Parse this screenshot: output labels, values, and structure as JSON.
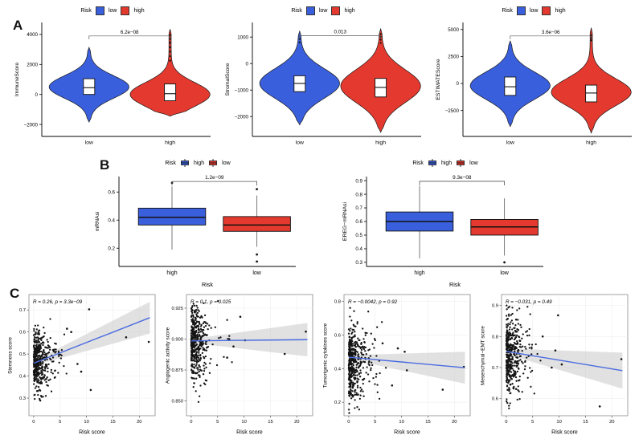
{
  "figure": {
    "background": "#ffffff",
    "colors": {
      "blue": "#3A5FDC",
      "red": "#E4392E",
      "line_blue": "#4A6BE0",
      "band_grey": "#c9c9c9"
    }
  },
  "chart_data": {
    "panels": [
      {
        "id": "A",
        "legend": {
          "title": "Risk",
          "glyph": "square",
          "items": [
            {
              "label": "low",
              "color": "#3A5FDC"
            },
            {
              "label": "high",
              "color": "#E4392E"
            }
          ]
        },
        "plots": [
          {
            "type": "violin",
            "ylabel": "ImmuneScore",
            "yticks": [
              -2000,
              0,
              2000,
              4000
            ],
            "ylim": [
              -2800,
              4800
            ],
            "pvalue": "6.2e−08",
            "bracket_y": 3900,
            "categories": [
              "low",
              "high"
            ],
            "groups": [
              {
                "label": "low",
                "color": "#3A5FDC",
                "median": 450,
                "q1": 0,
                "q3": 1050,
                "lo": -1850,
                "hi": 3150,
                "mu": 500,
                "sigma": 750,
                "dots": []
              },
              {
                "label": "high",
                "color": "#E4392E",
                "median": 50,
                "q1": -420,
                "q3": 700,
                "lo": -1450,
                "hi": 4350,
                "mu": 0,
                "sigma": 800,
                "dots": [
                  2250,
                  2550,
                  2850,
                  3150,
                  3450,
                  3700,
                  3950
                ]
              }
            ]
          },
          {
            "type": "violin",
            "ylabel": "StromalScore",
            "yticks": [
              -2000,
              -1000,
              0,
              1000
            ],
            "ylim": [
              -2750,
              1550
            ],
            "pvalue": "0.013",
            "bracket_y": 1050,
            "categories": [
              "low",
              "high"
            ],
            "groups": [
              {
                "label": "low",
                "color": "#3A5FDC",
                "median": -750,
                "q1": -1060,
                "q3": -460,
                "lo": -2320,
                "hi": 1230,
                "mu": -750,
                "sigma": 560,
                "dots": [
                  800,
                  930
                ]
              },
              {
                "label": "high",
                "color": "#E4392E",
                "median": -900,
                "q1": -1260,
                "q3": -560,
                "lo": -2600,
                "hi": 1320,
                "mu": -850,
                "sigma": 620,
                "dots": [
                  780,
                  900,
                  1010,
                  1110
                ]
              }
            ]
          },
          {
            "type": "violin",
            "ylabel": "ESTIMATEScore",
            "yticks": [
              -2500,
              0,
              2500,
              5000
            ],
            "ylim": [
              -4900,
              5650
            ],
            "pvalue": "3.6e−06",
            "bracket_y": 4400,
            "categories": [
              "low",
              "high"
            ],
            "groups": [
              {
                "label": "low",
                "color": "#3A5FDC",
                "median": -300,
                "q1": -1100,
                "q3": 600,
                "lo": -4000,
                "hi": 3950,
                "mu": -200,
                "sigma": 1250,
                "dots": []
              },
              {
                "label": "high",
                "color": "#E4392E",
                "median": -880,
                "q1": -1700,
                "q3": -150,
                "lo": -4600,
                "hi": 5150,
                "mu": -800,
                "sigma": 1250,
                "dots": [
                  4000,
                  4200,
                  4450
                ]
              }
            ]
          }
        ]
      },
      {
        "id": "B",
        "legend": {
          "title": "Risk",
          "glyph": "box",
          "items": [
            {
              "label": "high",
              "color": "#3A5FDC"
            },
            {
              "label": "low",
              "color": "#E4392E"
            }
          ]
        },
        "plots": [
          {
            "type": "box",
            "ylabel": "mRNAsi",
            "xlabel": "Risk",
            "yticks": [
              0.2,
              0.4,
              0.6
            ],
            "ytick_fmt": 1,
            "ylim": [
              0.07,
              0.71
            ],
            "pvalue": "1.2e−09",
            "bracket_y": 0.675,
            "groups": [
              {
                "label": "high",
                "color": "#3A5FDC",
                "q1": 0.365,
                "q3": 0.485,
                "median": 0.42,
                "lo": 0.19,
                "hi": 0.64,
                "dots": [
                  0.665
                ]
              },
              {
                "label": "low",
                "color": "#E4392E",
                "q1": 0.32,
                "q3": 0.425,
                "median": 0.365,
                "lo": 0.21,
                "hi": 0.575,
                "dots": [
                  0.62,
                  0.155,
                  0.105
                ]
              }
            ]
          },
          {
            "type": "box",
            "ylabel": "EREG−mRNAsi",
            "xlabel": "Risk",
            "yticks": [
              0.3,
              0.4,
              0.5,
              0.6,
              0.7,
              0.8,
              0.9
            ],
            "ytick_fmt": 1,
            "ylim": [
              0.27,
              0.93
            ],
            "pvalue": "9.3e−08",
            "bracket_y": 0.895,
            "groups": [
              {
                "label": "high",
                "color": "#3A5FDC",
                "q1": 0.53,
                "q3": 0.67,
                "median": 0.6,
                "lo": 0.33,
                "hi": 0.86,
                "dots": []
              },
              {
                "label": "low",
                "color": "#E4392E",
                "q1": 0.5,
                "q3": 0.615,
                "median": 0.56,
                "lo": 0.35,
                "hi": 0.77,
                "dots": [
                  0.3
                ]
              }
            ]
          }
        ]
      },
      {
        "id": "C",
        "plots": [
          {
            "type": "scatter",
            "ylabel": "Stemness score",
            "xlabel": "Risk score",
            "annotation": "R = 0.26, p = 3.3e−09",
            "yticks": [
              0.3,
              0.4,
              0.5,
              0.6,
              0.7
            ],
            "ytick_fmt": 1,
            "ylim": [
              0.22,
              0.77
            ],
            "xticks": [
              0,
              5,
              10,
              15,
              20
            ],
            "xlim": [
              -0.9,
              23
            ],
            "line": {
              "x": [
                0,
                22
              ],
              "y": [
                0.458,
                0.665
              ]
            },
            "band_w": [
              0.01,
              0.072
            ],
            "cloud": {
              "n": 430,
              "seed": 11,
              "x_scale": 1.25,
              "x_max": 8.5,
              "y_mean": 0.47,
              "y_sd": 0.07,
              "y_clip": [
                0.245,
                0.72
              ]
            },
            "extra_points": [
              [
                10.5,
                0.703
              ],
              [
                10.8,
                0.337
              ],
              [
                17.5,
                0.576
              ],
              [
                21.8,
                0.555
              ],
              [
                6.3,
                0.615
              ],
              [
                7.1,
                0.6
              ],
              [
                8.3,
                0.455
              ],
              [
                9.0,
                0.42
              ]
            ]
          },
          {
            "type": "scatter",
            "ylabel": "Angiogenic activity score",
            "xlabel": "Risk score",
            "annotation": "R = 0.1, p = 0.025",
            "yticks": [
              0.85,
              0.875,
              0.9,
              0.925
            ],
            "ytick_fmt": 3,
            "ylim": [
              0.838,
              0.936
            ],
            "xticks": [
              0,
              5,
              10,
              15,
              20
            ],
            "xlim": [
              -0.9,
              23
            ],
            "line": {
              "x": [
                0,
                22
              ],
              "y": [
                0.8985,
                0.8995
              ]
            },
            "band_w": [
              0.0015,
              0.0135
            ],
            "cloud": {
              "n": 430,
              "seed": 22,
              "x_scale": 1.2,
              "x_max": 8,
              "y_mean": 0.898,
              "y_sd": 0.015,
              "y_clip": [
                0.842,
                0.931
              ]
            },
            "extra_points": [
              [
                21.7,
                0.906
              ],
              [
                17.7,
                0.888
              ],
              [
                9.3,
                0.918
              ],
              [
                7.2,
                0.9
              ],
              [
                8.0,
                0.894
              ],
              [
                10.2,
                0.899
              ],
              [
                6.8,
                0.885
              ]
            ]
          },
          {
            "type": "scatter",
            "ylabel": "Tumorigenic cytokines score",
            "xlabel": "Risk score",
            "annotation": "R = −0.0042, p = 0.92",
            "yticks": [
              0.2,
              0.4,
              0.6,
              0.8
            ],
            "ytick_fmt": 1,
            "ylim": [
              0.12,
              0.84
            ],
            "xticks": [
              0,
              5,
              10,
              15,
              20
            ],
            "xlim": [
              -0.9,
              23
            ],
            "line": {
              "x": [
                0,
                22
              ],
              "y": [
                0.468,
                0.405
              ]
            },
            "band_w": [
              0.012,
              0.095
            ],
            "cloud": {
              "n": 430,
              "seed": 33,
              "x_scale": 1.25,
              "x_max": 8.5,
              "y_mean": 0.44,
              "y_sd": 0.11,
              "y_clip": [
                0.13,
                0.8
              ]
            },
            "extra_points": [
              [
                21.8,
                0.41
              ],
              [
                17.8,
                0.275
              ],
              [
                10.6,
                0.5
              ],
              [
                11.0,
                0.39
              ],
              [
                9.3,
                0.52
              ],
              [
                8.2,
                0.3
              ],
              [
                6.4,
                0.55
              ]
            ]
          },
          {
            "type": "scatter",
            "ylabel": "Mesenchymal−EMT score",
            "xlabel": "Risk score",
            "annotation": "R = −0.031, p = 0.49",
            "yticks": [
              0.6,
              0.7,
              0.8,
              0.9
            ],
            "ytick_fmt": 1,
            "ylim": [
              0.545,
              0.935
            ],
            "xticks": [
              0,
              5,
              10,
              15,
              20
            ],
            "xlim": [
              -0.9,
              23
            ],
            "line": {
              "x": [
                0,
                22
              ],
              "y": [
                0.752,
                0.69
              ]
            },
            "band_w": [
              0.009,
              0.058
            ],
            "cloud": {
              "n": 430,
              "seed": 44,
              "x_scale": 1.2,
              "x_max": 8,
              "y_mean": 0.745,
              "y_sd": 0.062,
              "y_clip": [
                0.555,
                0.91
              ]
            },
            "extra_points": [
              [
                21.8,
                0.727
              ],
              [
                17.7,
                0.575
              ],
              [
                9.8,
                0.868
              ],
              [
                10.5,
                0.71
              ],
              [
                8.6,
                0.7
              ],
              [
                9.3,
                0.755
              ],
              [
                6.9,
                0.8
              ]
            ]
          }
        ]
      }
    ]
  }
}
